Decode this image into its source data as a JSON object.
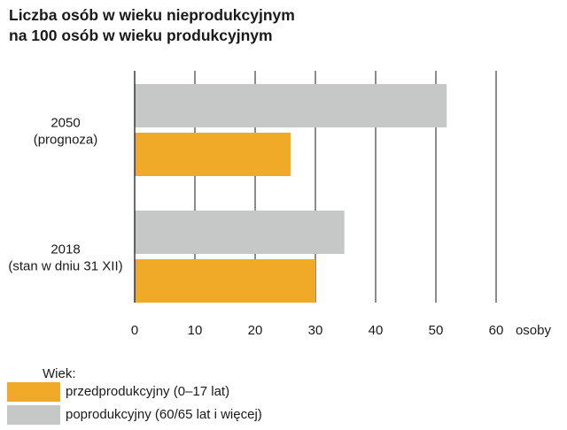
{
  "chart_data": {
    "type": "bar",
    "orientation": "horizontal",
    "title_lines": [
      "Liczba osób w wieku nieprodukcyjnym",
      "na 100 osób w wieku produkcyjnym"
    ],
    "categories": [
      {
        "lines": [
          "2050",
          "(prognoza)"
        ]
      },
      {
        "lines": [
          "2018",
          "(stan w dniu 31 XII)"
        ]
      }
    ],
    "series": [
      {
        "name": "poprodukcyjny (60/65 lat i więcej)",
        "color": "#c6c7c7",
        "values": [
          51.8,
          34.8
        ]
      },
      {
        "name": "przedprodukcyjny (0–17 lat)",
        "color": "#f0aa27",
        "values": [
          25.9,
          30.0
        ]
      }
    ],
    "xlim": [
      0,
      62
    ],
    "xticks": [
      0,
      10,
      20,
      30,
      40,
      50,
      60
    ],
    "xunit": "osoby",
    "grid": true,
    "legend": {
      "title": "Wiek:",
      "position": "bottom-left",
      "order": [
        1,
        0
      ]
    }
  }
}
